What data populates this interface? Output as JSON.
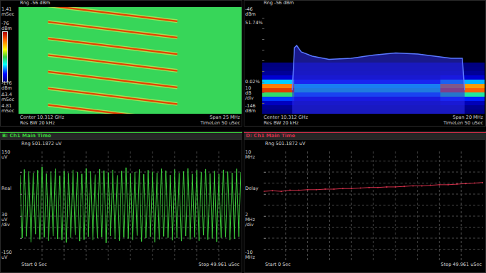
{
  "chart_data": [
    {
      "type": "spectrogram",
      "range_label": "Rng -56 dBm",
      "xlim": [
        10.2995,
        10.3245
      ],
      "ylim": [
        4.81,
        1.41
      ],
      "yticks": [
        {
          "value": 1.41,
          "label": "1.41 mSec"
        },
        {
          "value": 4.81,
          "label": "4.81 mSec"
        }
      ],
      "span_label": "Δ3.4 mSec",
      "tick_labels": "y",
      "grid": false,
      "colorbar": {
        "range": [
          -176,
          -76
        ],
        "ticks": [
          {
            "value": -76,
            "label": "-76 dBm"
          },
          {
            "value": -176,
            "label": "-176 dBm"
          }
        ]
      },
      "floor": -128,
      "chirps": [
        {
          "start_freq": 10.3028,
          "end_freq": 10.3173,
          "start_time": 1.36,
          "end_time": 1.86,
          "level": -86
        },
        {
          "start_freq": 10.3028,
          "end_freq": 10.3173,
          "start_time": 1.88,
          "end_time": 2.38,
          "level": -86
        },
        {
          "start_freq": 10.3028,
          "end_freq": 10.3173,
          "start_time": 2.41,
          "end_time": 2.91,
          "level": -86
        },
        {
          "start_freq": 10.3028,
          "end_freq": 10.3173,
          "start_time": 2.94,
          "end_time": 3.44,
          "level": -86
        },
        {
          "start_freq": 10.3028,
          "end_freq": 10.3173,
          "start_time": 3.47,
          "end_time": 3.97,
          "level": -86
        },
        {
          "start_freq": 10.3028,
          "end_freq": 10.3173,
          "start_time": 4.0,
          "end_time": 4.5,
          "level": -86
        },
        {
          "start_freq": 10.3028,
          "end_freq": 10.3173,
          "start_time": 4.53,
          "end_time": 5.03,
          "level": -86
        }
      ],
      "footer_left": [
        "Center 10.312 GHz",
        "Res BW 20 kHz"
      ],
      "footer_right": [
        "Span 25 MHz",
        "TimeLen 50 uSec"
      ]
    },
    {
      "type": "persistence",
      "range_label": "Rng -56 dBm",
      "xlim": [
        10.302,
        10.322
      ],
      "ylim": [
        -146,
        -46
      ],
      "yticks": [
        {
          "value": -46,
          "label": "-46 dBm"
        },
        {
          "value": -146,
          "label": "-146 dBm"
        }
      ],
      "yscale": {
        "value": 10,
        "label": "10 dB /div"
      },
      "tick_labels": "y",
      "grid": false,
      "colorbar": {
        "range": [
          0.02,
          51.74
        ],
        "ticks": [
          {
            "value": 51.74,
            "label": "51.74%"
          },
          {
            "value": 0.02,
            "label": "0.02%"
          }
        ]
      },
      "persistence": {
        "freq_edges": [
          10.302,
          10.3049,
          10.318,
          10.322
        ],
        "level_edges": [
          -146,
          -142,
          -138,
          -134,
          -130,
          -126,
          -122,
          -118,
          -114,
          -110,
          -106,
          -102,
          -98
        ],
        "values": [
          [
            0.3,
            0.2,
            0.3
          ],
          [
            1.2,
            0.6,
            1
          ],
          [
            4,
            2,
            3.5
          ],
          [
            10,
            5,
            9
          ],
          [
            24,
            12,
            22
          ],
          [
            47,
            20,
            44
          ],
          [
            42,
            18,
            40
          ],
          [
            16,
            9,
            15
          ],
          [
            5,
            3,
            5
          ],
          [
            1.5,
            1,
            1.5
          ],
          [
            0.4,
            0.3,
            0.4
          ],
          [
            0.1,
            0.1,
            0.1
          ]
        ]
      },
      "envelope": {
        "color": "#2a2ae8",
        "x": [
          10.3047,
          10.3049,
          10.3051,
          10.3055,
          10.3065,
          10.308,
          10.31,
          10.312,
          10.314,
          10.316,
          10.3175,
          10.319,
          10.32,
          10.3202
        ],
        "values": [
          -124,
          -84,
          -82,
          -88,
          -92,
          -95,
          -94,
          -91,
          -89,
          -90,
          -92,
          -94,
          -94,
          -124
        ]
      },
      "footer_left": [
        "Center 10.312 GHz",
        "Res BW 20 kHz"
      ],
      "footer_right": [
        "Span 20 MHz",
        "TimeLen 50 uSec"
      ]
    },
    {
      "type": "line",
      "title": "B: Ch1 Main Time",
      "range_label": "Rng 501.1872 uV",
      "trace_label": "Real",
      "xlim": [
        0,
        49.961
      ],
      "xticks": [
        {
          "value": 0,
          "label": "Start 0 Sec"
        },
        {
          "value": 49.961,
          "label": "Stop 49.961 uSec"
        }
      ],
      "ylim": [
        -150,
        150
      ],
      "yticks": [
        {
          "value": 150,
          "label": "150 uV"
        },
        {
          "value": -150,
          "label": "-150 uV"
        }
      ],
      "yscale": {
        "value": 30,
        "label": "30 uV /div"
      },
      "grid": true,
      "color": "#3ccf3c",
      "line_style": "solid",
      "x": [
        0,
        0.5,
        1,
        1.5,
        2,
        2.5,
        3,
        3.5,
        4,
        4.5,
        5,
        5.5,
        6,
        6.5,
        7,
        7.5,
        8,
        8.5,
        9,
        9.5,
        10,
        10.5,
        11,
        11.5,
        12,
        12.5,
        13,
        13.5,
        14,
        14.5,
        15,
        15.5,
        16,
        16.5,
        17,
        17.5,
        18,
        18.5,
        19,
        19.5,
        20,
        20.5,
        21,
        21.5,
        22,
        22.5,
        23,
        23.5,
        24,
        24.5,
        25,
        25.5,
        26,
        26.5,
        27,
        27.5,
        28,
        28.5,
        29,
        29.5,
        30,
        30.5,
        31,
        31.5,
        32,
        32.5,
        33,
        33.5,
        34,
        34.5,
        35,
        35.5,
        36,
        36.5,
        37,
        37.5,
        38,
        38.5,
        39,
        39.5,
        40,
        40.5,
        41,
        41.5,
        42,
        42.5,
        43,
        43.5,
        44,
        44.5,
        45,
        45.5,
        46,
        46.5,
        47,
        47.5,
        48,
        48.5,
        49,
        49.5,
        49.961
      ],
      "values": [
        82,
        -90,
        97,
        -85,
        92,
        -101,
        88,
        -79,
        95,
        -93,
        104,
        -88,
        86,
        -97,
        91,
        -84,
        99,
        -92,
        80,
        -95,
        93,
        -102,
        87,
        -89,
        96,
        -81,
        90,
        -98,
        85,
        -94,
        100,
        -86,
        92,
        -95,
        83,
        -90,
        98,
        -87,
        94,
        -103,
        89,
        -84,
        96,
        -92,
        81,
        -97,
        93,
        -88,
        102,
        -91,
        86,
        -95,
        90,
        -83,
        97,
        -99,
        84,
        -90,
        95,
        -86,
        91,
        -101,
        88,
        -93,
        99,
        -85,
        94,
        -89,
        82,
        -96,
        97,
        -90,
        87,
        -98,
        92,
        -84,
        100,
        -93,
        85,
        -88,
        95,
        -97,
        90,
        -82,
        98,
        -94,
        86,
        -91,
        93,
        -100,
        84,
        -89,
        96,
        -87,
        91,
        -95,
        88,
        -92,
        99,
        -86,
        90
      ]
    },
    {
      "type": "line",
      "title": "D: Ch1 Main Time",
      "range_label": "Rng 501.1872 uV",
      "trace_label": "Delay",
      "xlim": [
        0,
        49.961
      ],
      "xticks": [
        {
          "value": 0,
          "label": "Start 0 Sec"
        },
        {
          "value": 49.961,
          "label": "Stop 49.961 uSec"
        }
      ],
      "ylim": [
        -10,
        10
      ],
      "yticks": [
        {
          "value": 10,
          "label": "10 MHz"
        },
        {
          "value": -10,
          "label": "-10 MHz"
        }
      ],
      "yscale": {
        "value": 2,
        "label": "2 MHz /div"
      },
      "grid": true,
      "color": "#d0304a",
      "marker": "dot",
      "line_style": "solid",
      "x": [
        0,
        2,
        4,
        6,
        8,
        10,
        12,
        14,
        16,
        18,
        20,
        22,
        24,
        26,
        28,
        30,
        32,
        34,
        36,
        38,
        40,
        42,
        44,
        46,
        48,
        49.961
      ],
      "values": [
        2.5,
        2.6,
        2.5,
        2.7,
        2.7,
        2.8,
        2.8,
        2.9,
        2.9,
        3.0,
        3.0,
        3.1,
        3.2,
        3.2,
        3.3,
        3.3,
        3.4,
        3.5,
        3.5,
        3.6,
        3.7,
        3.7,
        3.8,
        3.9,
        4.0,
        4.1
      ]
    }
  ]
}
